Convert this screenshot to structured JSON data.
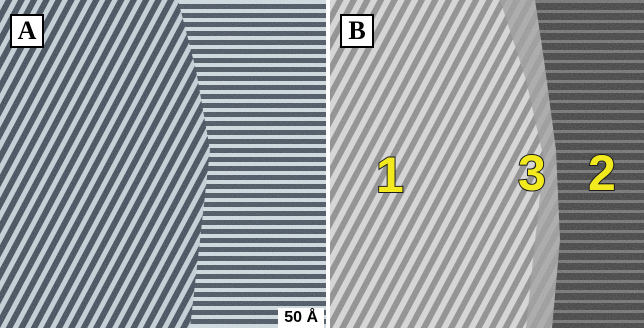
{
  "panels": [
    {
      "label": "A",
      "scale_bar": "50 Å"
    },
    {
      "label": "B",
      "regions": [
        "1",
        "3",
        "2"
      ]
    }
  ],
  "colors": {
    "stm_light": "#d9e4e8",
    "stm_dark": "#3a4552",
    "map_light": "#cfcfcf",
    "map_mid": "#8a8a8a",
    "map_dark": "#3d3d3d",
    "region_label": "#f2ea1f"
  }
}
